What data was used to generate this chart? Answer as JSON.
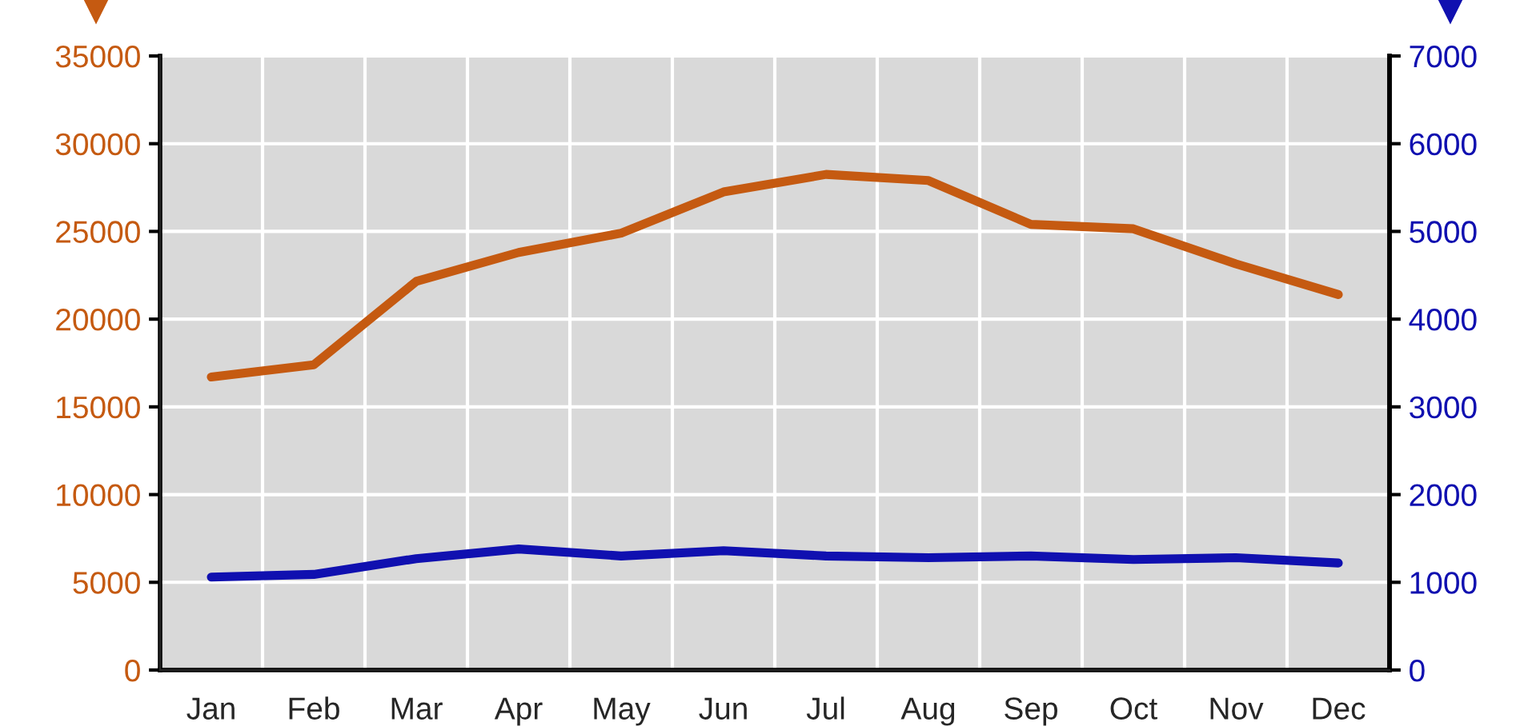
{
  "chart_data": {
    "type": "line",
    "categories": [
      "Jan",
      "Feb",
      "Mar",
      "Apr",
      "May",
      "Jun",
      "Jul",
      "Aug",
      "Sep",
      "Oct",
      "Nov",
      "Dec"
    ],
    "series": [
      {
        "color": "#c55a11",
        "values": [
          16700,
          17400,
          22150,
          23800,
          24900,
          27250,
          28250,
          27900,
          25400,
          25150,
          23150,
          21400
        ]
      },
      {
        "color": "#1010b0",
        "axis": "y2",
        "values": [
          1060,
          1090,
          1270,
          1380,
          1300,
          1360,
          1300,
          1280,
          1300,
          1260,
          1280,
          1220
        ]
      }
    ],
    "ylim": [
      0,
      35000
    ],
    "yticks": [
      0,
      5000,
      10000,
      15000,
      20000,
      25000,
      30000,
      35000
    ],
    "y2lim": [
      0,
      7000
    ],
    "y2ticks": [
      0,
      1000,
      2000,
      3000,
      4000,
      5000,
      6000,
      7000
    ],
    "grid": true,
    "legend": false
  }
}
